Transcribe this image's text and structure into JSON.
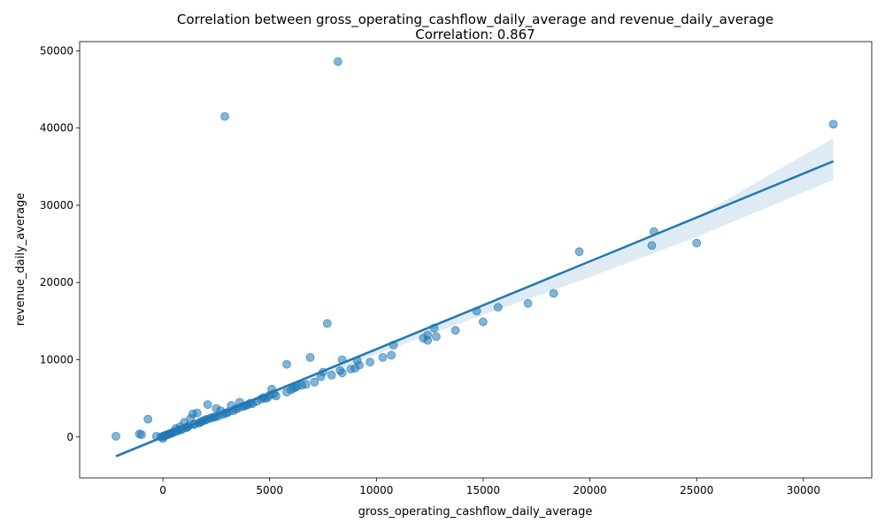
{
  "chart_data": {
    "type": "scatter",
    "title": "Correlation between gross_operating_cashflow_daily_average and revenue_daily_average",
    "subtitle": "Correlation: 0.867",
    "xlabel": "gross_operating_cashflow_daily_average",
    "ylabel": "revenue_daily_average",
    "xlim": [
      -3900,
      33200
    ],
    "ylim": [
      -5300,
      51200
    ],
    "x_ticks": [
      0,
      5000,
      10000,
      15000,
      20000,
      25000,
      30000
    ],
    "y_ticks": [
      0,
      10000,
      20000,
      30000,
      40000,
      50000
    ],
    "grid": false,
    "point_color": "#1f77b4",
    "regression_line": {
      "x": [
        -2200,
        31400
      ],
      "y": [
        -2500,
        35700
      ],
      "color": "#1f77b4"
    },
    "confidence_band": {
      "x": [
        -2200,
        0,
        5000,
        10000,
        15000,
        20000,
        25000,
        31400
      ],
      "lower": [
        -2700,
        -300,
        5200,
        10700,
        15800,
        20700,
        25900,
        33300
      ],
      "upper": [
        -2300,
        200,
        5800,
        11500,
        17000,
        22500,
        28500,
        38700
      ],
      "color": "#1f77b4"
    },
    "points": [
      {
        "x": 8200,
        "y": 48600
      },
      {
        "x": 2900,
        "y": 41500
      },
      {
        "x": 31400,
        "y": 40500
      },
      {
        "x": 23000,
        "y": 26600
      },
      {
        "x": 25000,
        "y": 25100
      },
      {
        "x": 22900,
        "y": 24800
      },
      {
        "x": 19500,
        "y": 24000
      },
      {
        "x": 18300,
        "y": 18600
      },
      {
        "x": 17100,
        "y": 17300
      },
      {
        "x": 15700,
        "y": 16800
      },
      {
        "x": 14700,
        "y": 16300
      },
      {
        "x": 15000,
        "y": 14900
      },
      {
        "x": 7700,
        "y": 14700
      },
      {
        "x": 12700,
        "y": 14100
      },
      {
        "x": 13700,
        "y": 13800
      },
      {
        "x": 12400,
        "y": 13200
      },
      {
        "x": 12800,
        "y": 13000
      },
      {
        "x": 12200,
        "y": 12800
      },
      {
        "x": 12400,
        "y": 12500
      },
      {
        "x": 10800,
        "y": 11900
      },
      {
        "x": 10700,
        "y": 10600
      },
      {
        "x": 10300,
        "y": 10300
      },
      {
        "x": 6900,
        "y": 10300
      },
      {
        "x": 8400,
        "y": 10000
      },
      {
        "x": 9100,
        "y": 9900
      },
      {
        "x": 9700,
        "y": 9700
      },
      {
        "x": 5800,
        "y": 9400
      },
      {
        "x": 9200,
        "y": 9300
      },
      {
        "x": 8800,
        "y": 8800
      },
      {
        "x": 9000,
        "y": 8900
      },
      {
        "x": 8300,
        "y": 8600
      },
      {
        "x": 7500,
        "y": 8400
      },
      {
        "x": 8400,
        "y": 8300
      },
      {
        "x": 7900,
        "y": 8000
      },
      {
        "x": 7400,
        "y": 7800
      },
      {
        "x": 7100,
        "y": 7100
      },
      {
        "x": 6700,
        "y": 6800
      },
      {
        "x": 6500,
        "y": 6700
      },
      {
        "x": 6300,
        "y": 6600
      },
      {
        "x": 6100,
        "y": 6300
      },
      {
        "x": 6000,
        "y": 6100
      },
      {
        "x": 5800,
        "y": 5800
      },
      {
        "x": 5100,
        "y": 6200
      },
      {
        "x": 5300,
        "y": 5300
      },
      {
        "x": 5000,
        "y": 5400
      },
      {
        "x": 4800,
        "y": 5000
      },
      {
        "x": 4600,
        "y": 4900
      },
      {
        "x": 4400,
        "y": 4600
      },
      {
        "x": 4200,
        "y": 4300
      },
      {
        "x": 4000,
        "y": 4200
      },
      {
        "x": 3800,
        "y": 4000
      },
      {
        "x": 3600,
        "y": 4500
      },
      {
        "x": 3400,
        "y": 3600
      },
      {
        "x": 3200,
        "y": 4100
      },
      {
        "x": 3100,
        "y": 3300
      },
      {
        "x": 2900,
        "y": 3100
      },
      {
        "x": 2700,
        "y": 3400
      },
      {
        "x": 2500,
        "y": 3700
      },
      {
        "x": 2400,
        "y": 2600
      },
      {
        "x": 2200,
        "y": 2400
      },
      {
        "x": 2100,
        "y": 4200
      },
      {
        "x": 2000,
        "y": 2200
      },
      {
        "x": 1800,
        "y": 2000
      },
      {
        "x": 1600,
        "y": 3100
      },
      {
        "x": 1500,
        "y": 1700
      },
      {
        "x": 1400,
        "y": 3000
      },
      {
        "x": 1300,
        "y": 2400
      },
      {
        "x": 1200,
        "y": 1400
      },
      {
        "x": 1100,
        "y": 1200
      },
      {
        "x": 1000,
        "y": 1900
      },
      {
        "x": 900,
        "y": 1000
      },
      {
        "x": 800,
        "y": 1300
      },
      {
        "x": 700,
        "y": 800
      },
      {
        "x": 600,
        "y": 1100
      },
      {
        "x": 500,
        "y": 600
      },
      {
        "x": 400,
        "y": 500
      },
      {
        "x": 300,
        "y": 400
      },
      {
        "x": 200,
        "y": 300
      },
      {
        "x": 100,
        "y": 200
      },
      {
        "x": 0,
        "y": 100
      },
      {
        "x": -100,
        "y": 0
      },
      {
        "x": 0,
        "y": -200
      },
      {
        "x": -300,
        "y": 100
      },
      {
        "x": -700,
        "y": 2300
      },
      {
        "x": -1100,
        "y": 400
      },
      {
        "x": -1000,
        "y": 300
      },
      {
        "x": -2200,
        "y": 100
      },
      {
        "x": 1700,
        "y": 1800
      },
      {
        "x": 2300,
        "y": 2500
      },
      {
        "x": 2600,
        "y": 2700
      },
      {
        "x": 3000,
        "y": 3100
      },
      {
        "x": 3300,
        "y": 3400
      },
      {
        "x": 3500,
        "y": 3700
      },
      {
        "x": 3700,
        "y": 3900
      },
      {
        "x": 3900,
        "y": 4100
      },
      {
        "x": 4100,
        "y": 4400
      },
      {
        "x": 4700,
        "y": 5100
      },
      {
        "x": 1900,
        "y": 2100
      },
      {
        "x": 2800,
        "y": 2900
      },
      {
        "x": 650,
        "y": 750
      },
      {
        "x": 350,
        "y": 450
      },
      {
        "x": 150,
        "y": 250
      },
      {
        "x": 50,
        "y": 80
      },
      {
        "x": 250,
        "y": 320
      },
      {
        "x": 450,
        "y": 550
      },
      {
        "x": 850,
        "y": 950
      },
      {
        "x": 1150,
        "y": 1300
      },
      {
        "x": 1450,
        "y": 1600
      },
      {
        "x": 1750,
        "y": 1900
      },
      {
        "x": 2050,
        "y": 2300
      },
      {
        "x": 2450,
        "y": 2600
      },
      {
        "x": 4900,
        "y": 5100
      },
      {
        "x": 5200,
        "y": 5600
      },
      {
        "x": 6200,
        "y": 6400
      }
    ]
  }
}
